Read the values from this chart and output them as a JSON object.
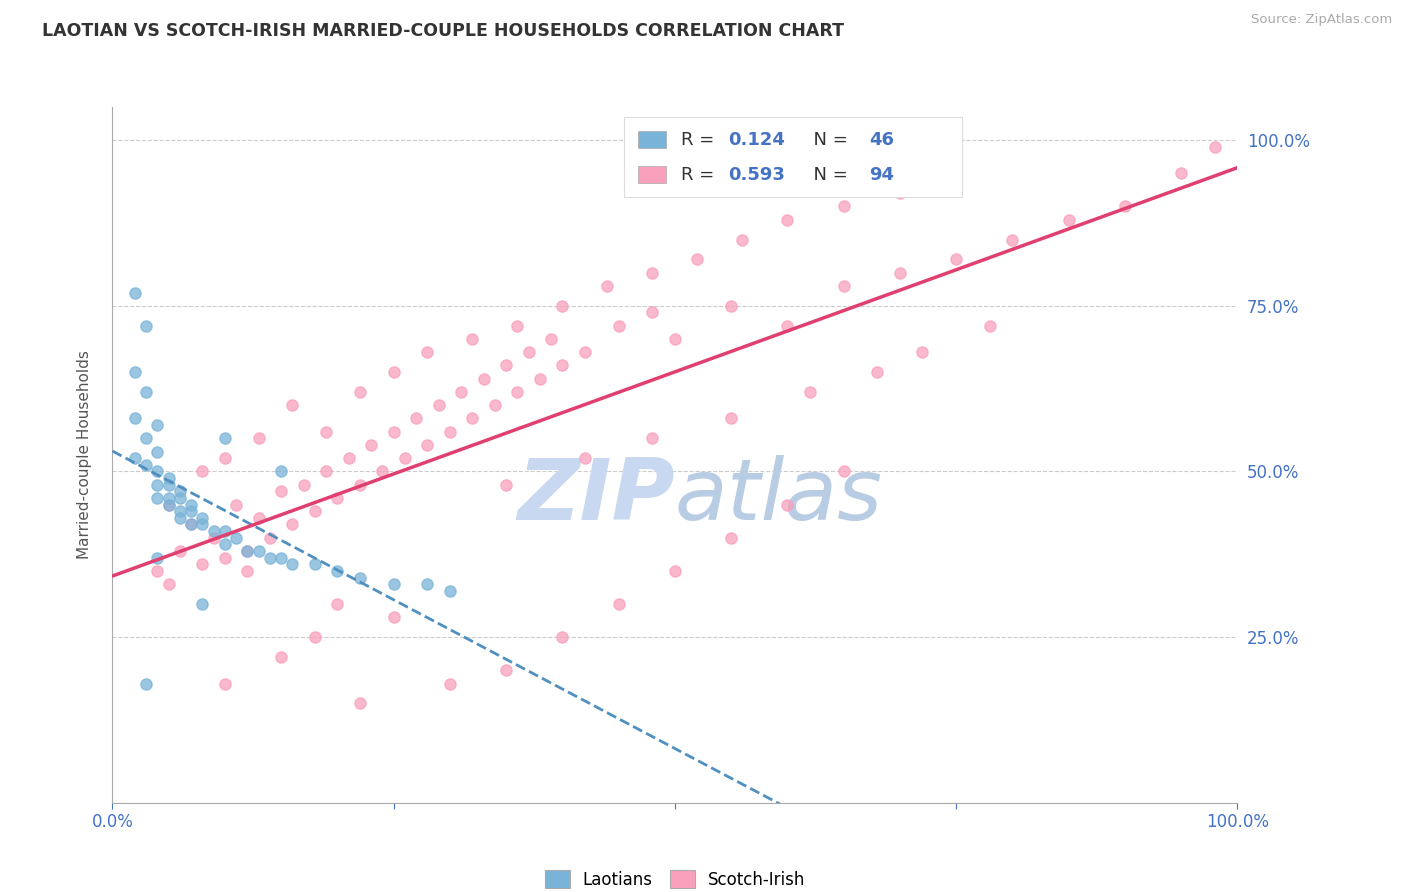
{
  "title": "LAOTIAN VS SCOTCH-IRISH MARRIED-COUPLE HOUSEHOLDS CORRELATION CHART",
  "source": "Source: ZipAtlas.com",
  "ylabel": "Married-couple Households",
  "laotian_color": "#7ab3d8",
  "scotch_irish_color": "#f9a0bc",
  "trendline_laotian_color": "#5090c0",
  "trendline_scotch_color": "#e04070",
  "watermark_zip": "ZIP",
  "watermark_atlas": "atlas",
  "watermark_color": "#c8d8f0",
  "background_color": "#ffffff",
  "grid_color": "#cccccc",
  "tick_color": "#4472c4",
  "R_label_color": "#4472c4",
  "R_laotian": "0.124",
  "N_laotian": "46",
  "R_scotch": "0.593",
  "N_scotch": "94",
  "laotian_points_x": [
    0.02,
    0.03,
    0.02,
    0.03,
    0.02,
    0.04,
    0.03,
    0.04,
    0.02,
    0.03,
    0.04,
    0.05,
    0.04,
    0.05,
    0.06,
    0.04,
    0.05,
    0.06,
    0.07,
    0.05,
    0.06,
    0.07,
    0.08,
    0.06,
    0.07,
    0.08,
    0.1,
    0.09,
    0.11,
    0.1,
    0.12,
    0.13,
    0.14,
    0.15,
    0.16,
    0.18,
    0.2,
    0.22,
    0.25,
    0.28,
    0.3,
    0.04,
    0.08,
    0.03,
    0.1,
    0.15
  ],
  "laotian_points_y": [
    0.77,
    0.72,
    0.65,
    0.62,
    0.58,
    0.57,
    0.55,
    0.53,
    0.52,
    0.51,
    0.5,
    0.49,
    0.48,
    0.48,
    0.47,
    0.46,
    0.46,
    0.46,
    0.45,
    0.45,
    0.44,
    0.44,
    0.43,
    0.43,
    0.42,
    0.42,
    0.41,
    0.41,
    0.4,
    0.39,
    0.38,
    0.38,
    0.37,
    0.37,
    0.36,
    0.36,
    0.35,
    0.34,
    0.33,
    0.33,
    0.32,
    0.37,
    0.3,
    0.18,
    0.55,
    0.5
  ],
  "scotch_irish_points_x": [
    0.04,
    0.05,
    0.06,
    0.07,
    0.08,
    0.09,
    0.1,
    0.11,
    0.12,
    0.13,
    0.14,
    0.15,
    0.16,
    0.17,
    0.18,
    0.19,
    0.2,
    0.21,
    0.22,
    0.23,
    0.24,
    0.25,
    0.26,
    0.27,
    0.28,
    0.29,
    0.3,
    0.31,
    0.32,
    0.33,
    0.34,
    0.35,
    0.36,
    0.37,
    0.38,
    0.39,
    0.4,
    0.42,
    0.45,
    0.48,
    0.5,
    0.55,
    0.6,
    0.65,
    0.7,
    0.75,
    0.8,
    0.85,
    0.9,
    0.95,
    0.98,
    0.1,
    0.15,
    0.2,
    0.25,
    0.12,
    0.18,
    0.22,
    0.3,
    0.35,
    0.4,
    0.45,
    0.5,
    0.55,
    0.6,
    0.65,
    0.05,
    0.08,
    0.1,
    0.13,
    0.16,
    0.19,
    0.22,
    0.25,
    0.28,
    0.32,
    0.36,
    0.4,
    0.44,
    0.48,
    0.52,
    0.56,
    0.6,
    0.65,
    0.7,
    0.75,
    0.35,
    0.42,
    0.48,
    0.55,
    0.62,
    0.68,
    0.72,
    0.78
  ],
  "scotch_irish_points_y": [
    0.35,
    0.33,
    0.38,
    0.42,
    0.36,
    0.4,
    0.37,
    0.45,
    0.38,
    0.43,
    0.4,
    0.47,
    0.42,
    0.48,
    0.44,
    0.5,
    0.46,
    0.52,
    0.48,
    0.54,
    0.5,
    0.56,
    0.52,
    0.58,
    0.54,
    0.6,
    0.56,
    0.62,
    0.58,
    0.64,
    0.6,
    0.66,
    0.62,
    0.68,
    0.64,
    0.7,
    0.66,
    0.68,
    0.72,
    0.74,
    0.7,
    0.75,
    0.72,
    0.78,
    0.8,
    0.82,
    0.85,
    0.88,
    0.9,
    0.95,
    0.99,
    0.18,
    0.22,
    0.3,
    0.28,
    0.35,
    0.25,
    0.15,
    0.18,
    0.2,
    0.25,
    0.3,
    0.35,
    0.4,
    0.45,
    0.5,
    0.45,
    0.5,
    0.52,
    0.55,
    0.6,
    0.56,
    0.62,
    0.65,
    0.68,
    0.7,
    0.72,
    0.75,
    0.78,
    0.8,
    0.82,
    0.85,
    0.88,
    0.9,
    0.92,
    0.95,
    0.48,
    0.52,
    0.55,
    0.58,
    0.62,
    0.65,
    0.68,
    0.72
  ]
}
